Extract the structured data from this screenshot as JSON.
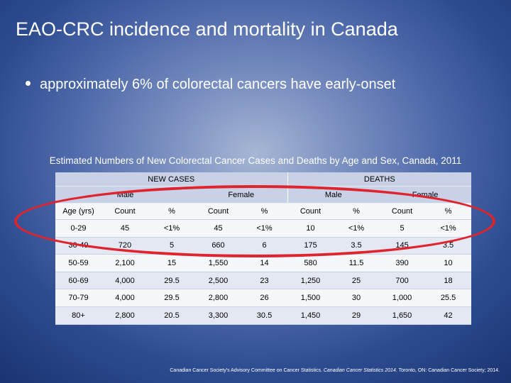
{
  "title": "EAO-CRC incidence and mortality in Canada",
  "bullet": "approximately 6% of colorectal cancers have early-onset",
  "caption": "Estimated Numbers of New Colorectal Cancer Cases and Deaths by Age and Sex, Canada, 2011",
  "table": {
    "groups": {
      "new_cases": "NEW CASES",
      "deaths": "DEATHS"
    },
    "sexes": {
      "male": "Male",
      "female": "Female"
    },
    "headers": [
      "Age (yrs)",
      "Count",
      "%",
      "Count",
      "%",
      "Count",
      "%",
      "Count",
      "%"
    ],
    "rows": [
      [
        "0-29",
        "45",
        "<1%",
        "45",
        "<1%",
        "10",
        "<1%",
        "5",
        "<1%"
      ],
      [
        "30-49",
        "720",
        "5",
        "660",
        "6",
        "175",
        "3.5",
        "145",
        "3.5"
      ],
      [
        "50-59",
        "2,100",
        "15",
        "1,550",
        "14",
        "580",
        "11.5",
        "390",
        "10"
      ],
      [
        "60-69",
        "4,000",
        "29.5",
        "2,500",
        "23",
        "1,250",
        "25",
        "700",
        "18"
      ],
      [
        "70-79",
        "4,000",
        "29.5",
        "2,800",
        "26",
        "1,500",
        "30",
        "1,000",
        "25.5"
      ],
      [
        "80+",
        "2,800",
        "20.5",
        "3,300",
        "30.5",
        "1,450",
        "29",
        "1,650",
        "42"
      ]
    ]
  },
  "citation": {
    "prefix": "Canadian Cancer Society's Advisory Committee on Cancer Statistics. ",
    "italic": "Canadian Cancer Statistics 2014",
    "suffix": ". Toronto, ON: Canadian Cancer Society; 2014."
  },
  "colors": {
    "ellipse": "#e0242e",
    "band": "#c9d1e6",
    "row_alt": "#e4e8f3"
  }
}
